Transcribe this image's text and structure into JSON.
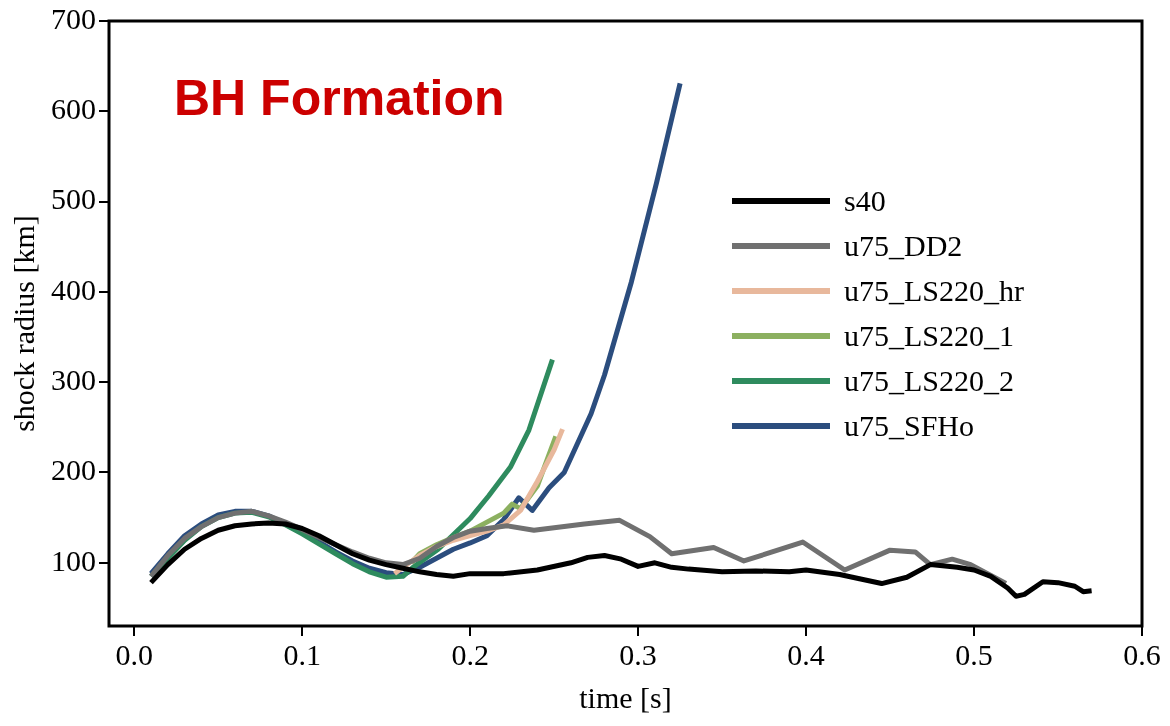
{
  "chart_data": {
    "type": "line",
    "xlabel": "time [s]",
    "ylabel": "shock radius [km]",
    "annotations": [
      "BH Formation"
    ],
    "xlim": [
      -0.015,
      0.6
    ],
    "ylim": [
      30,
      700
    ],
    "xticks": [
      {
        "value": 0,
        "label": "0.0"
      },
      {
        "value": 0.1,
        "label": "0.1"
      },
      {
        "value": 0.2,
        "label": "0.2"
      },
      {
        "value": 0.3,
        "label": "0.3"
      },
      {
        "value": 0.4,
        "label": "0.4"
      },
      {
        "value": 0.5,
        "label": "0.5"
      },
      {
        "value": 0.6,
        "label": "0.6"
      }
    ],
    "yticks": [
      100,
      200,
      300,
      400,
      500,
      600,
      700
    ],
    "grid": false,
    "legend": "right",
    "marker": "none",
    "line_style": "solid",
    "series": [
      {
        "name": "s40",
        "color": "#000000",
        "x": [
          0.01,
          0.02,
          0.03,
          0.04,
          0.05,
          0.06,
          0.07,
          0.08,
          0.09,
          0.1,
          0.11,
          0.12,
          0.13,
          0.14,
          0.15,
          0.16,
          0.17,
          0.18,
          0.19,
          0.2,
          0.22,
          0.24,
          0.26,
          0.27,
          0.28,
          0.29,
          0.3,
          0.31,
          0.32,
          0.33,
          0.35,
          0.37,
          0.39,
          0.4,
          0.42,
          0.445,
          0.46,
          0.474,
          0.49,
          0.5,
          0.51,
          0.52,
          0.525,
          0.53,
          0.541,
          0.55,
          0.56,
          0.565,
          0.57
        ],
        "values": [
          78,
          98,
          115,
          127,
          136,
          141,
          143,
          144,
          143,
          138,
          130,
          120,
          110,
          103,
          98,
          94,
          90,
          87,
          85,
          88,
          88,
          92,
          100,
          106,
          108,
          104,
          96,
          100,
          95,
          93,
          90,
          91,
          90,
          92,
          87,
          77,
          84,
          98,
          95,
          92,
          85,
          72,
          63,
          65,
          79,
          78,
          74,
          68,
          69
        ]
      },
      {
        "name": "u75_DD2",
        "color": "#707070",
        "x": [
          0.01,
          0.02,
          0.03,
          0.04,
          0.05,
          0.06,
          0.07,
          0.08,
          0.09,
          0.1,
          0.11,
          0.12,
          0.13,
          0.14,
          0.15,
          0.16,
          0.17,
          0.18,
          0.19,
          0.2,
          0.21,
          0.222,
          0.238,
          0.268,
          0.289,
          0.307,
          0.32,
          0.345,
          0.363,
          0.398,
          0.423,
          0.45,
          0.465,
          0.474,
          0.487,
          0.498,
          0.519
        ],
        "values": [
          85,
          108,
          127,
          140,
          150,
          155,
          157,
          152,
          145,
          137,
          128,
          120,
          112,
          105,
          100,
          98,
          105,
          118,
          128,
          135,
          138,
          141,
          136,
          143,
          147,
          129,
          110,
          117,
          102,
          123,
          92,
          114,
          112,
          98,
          104,
          98,
          77
        ]
      },
      {
        "name": "u75_LS220_hr",
        "color": "#e8b89c",
        "x": [
          0.155,
          0.16,
          0.17,
          0.18,
          0.19,
          0.2,
          0.21,
          0.22,
          0.23,
          0.24,
          0.25,
          0.255
        ],
        "values": [
          88,
          95,
          108,
          118,
          125,
          130,
          135,
          142,
          158,
          190,
          225,
          248
        ]
      },
      {
        "name": "u75_LS220_1",
        "color": "#8cb060",
        "x": [
          0.165,
          0.17,
          0.18,
          0.19,
          0.2,
          0.21,
          0.22,
          0.225,
          0.23,
          0.24,
          0.251
        ],
        "values": [
          100,
          110,
          120,
          128,
          135,
          145,
          155,
          165,
          160,
          185,
          240
        ]
      },
      {
        "name": "u75_LS220_2",
        "color": "#2e8b5e",
        "x": [
          0.01,
          0.02,
          0.03,
          0.04,
          0.05,
          0.06,
          0.07,
          0.08,
          0.09,
          0.1,
          0.11,
          0.12,
          0.13,
          0.14,
          0.15,
          0.16,
          0.166,
          0.181,
          0.2,
          0.211,
          0.224,
          0.235,
          0.249
        ],
        "values": [
          85,
          105,
          125,
          140,
          150,
          155,
          156,
          151,
          142,
          132,
          121,
          110,
          99,
          90,
          84,
          85,
          95,
          115,
          149,
          174,
          206,
          247,
          325
        ]
      },
      {
        "name": "u75_SFHo",
        "color": "#2b4d7e",
        "x": [
          0.01,
          0.02,
          0.03,
          0.04,
          0.05,
          0.06,
          0.07,
          0.08,
          0.09,
          0.1,
          0.11,
          0.12,
          0.13,
          0.14,
          0.15,
          0.16,
          0.17,
          0.18,
          0.19,
          0.2,
          0.21,
          0.22,
          0.229,
          0.237,
          0.247,
          0.256,
          0.272,
          0.28,
          0.296,
          0.311,
          0.325
        ],
        "values": [
          88,
          110,
          130,
          143,
          153,
          157,
          157,
          152,
          143,
          133,
          123,
          112,
          102,
          94,
          89,
          87,
          95,
          105,
          115,
          122,
          130,
          148,
          172,
          158,
          183,
          200,
          265,
          308,
          411,
          521,
          631
        ]
      }
    ]
  }
}
